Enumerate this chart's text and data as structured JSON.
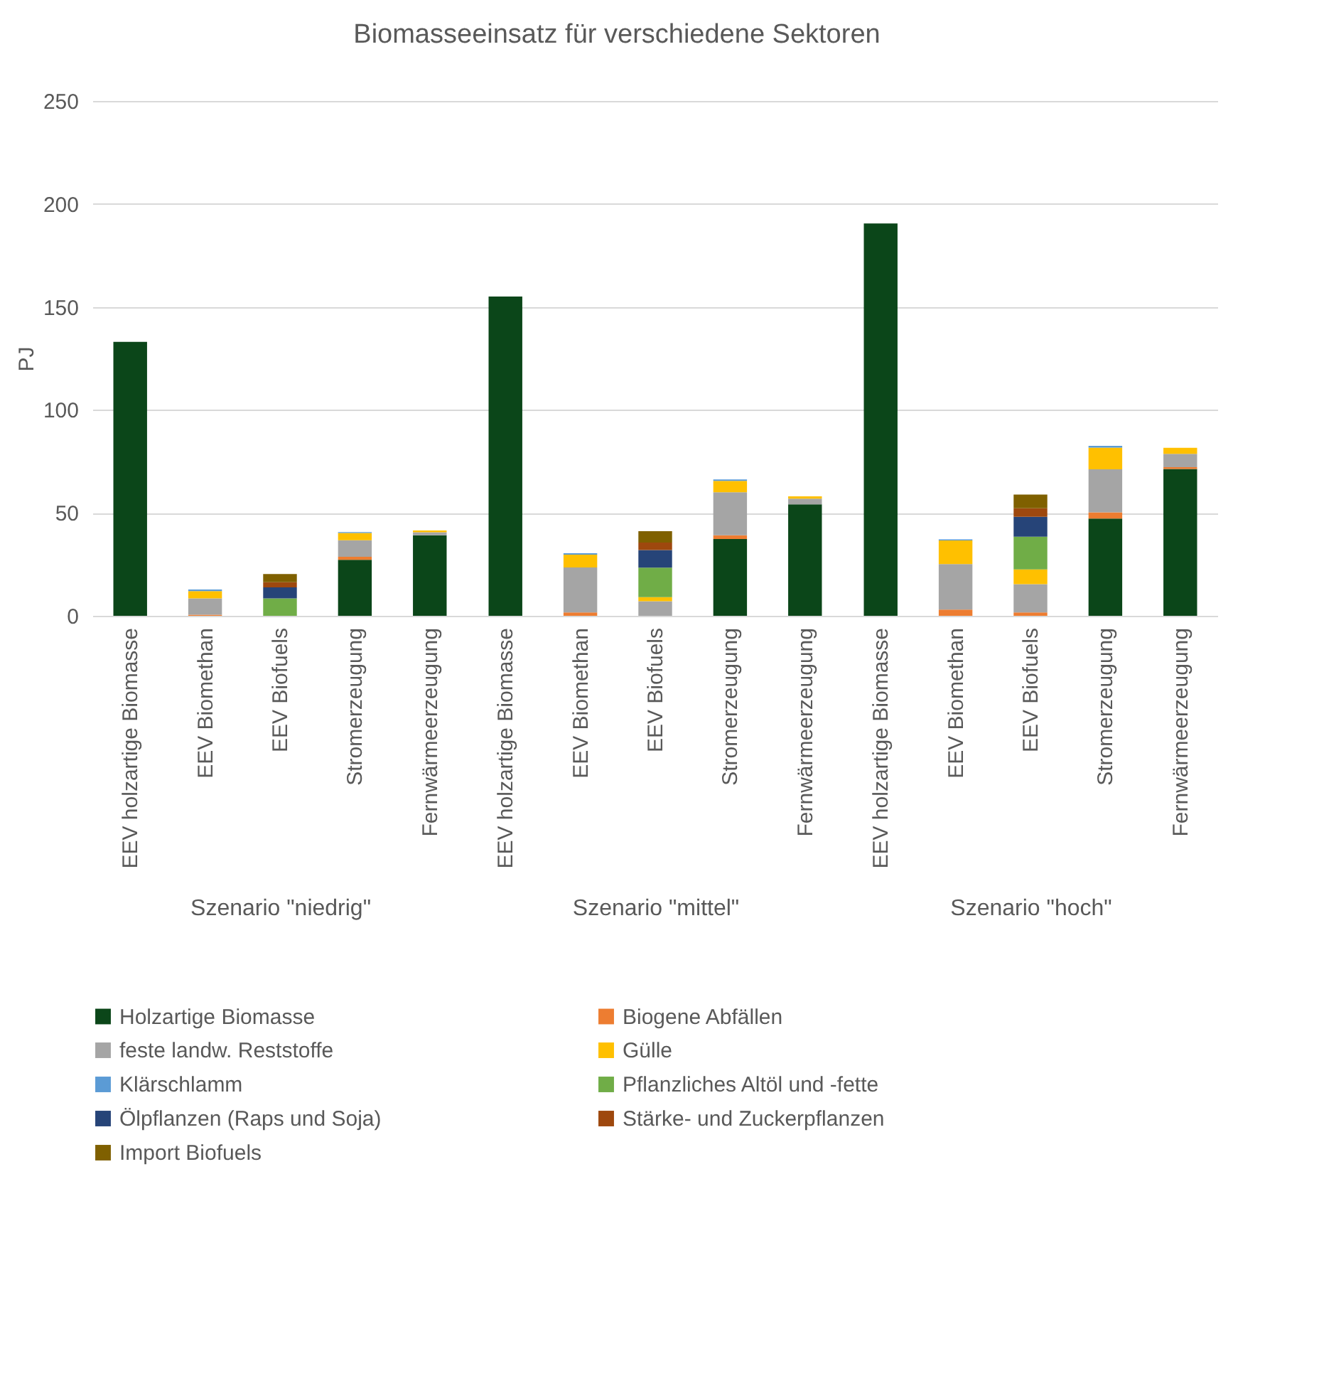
{
  "chart_data": [
    {
      "type": "bar",
      "title": "Biomasseeinsatz für verschiedene Sektoren",
      "ylabel": "PJ",
      "xlabel": "Szenario \"niedrig\"",
      "stacked": true,
      "grid": "y",
      "legend": "bottom",
      "categories": [
        "EEV holzartige Biomasse",
        "EEV Biomethan",
        "EEV Biofuels",
        "Stromerzeugung",
        "Fernwärmeerzeugung"
      ],
      "ylim": [
        0,
        250
      ],
      "yticks": [
        0,
        50,
        100,
        150,
        200,
        250
      ],
      "series": [
        {
          "name": "Holzartige Biomasse",
          "color": "#0b4619",
          "values": [
            133,
            null,
            null,
            27.2,
            39.1
          ]
        },
        {
          "name": "Biogene Abfällen",
          "color": "#ed7d31",
          "values": [
            null,
            0.5,
            null,
            1.5,
            null
          ]
        },
        {
          "name": "feste landw. Reststoffe",
          "color": "#a5a5a5",
          "values": [
            null,
            8,
            null,
            8,
            1.5
          ]
        },
        {
          "name": "Gülle",
          "color": "#ffc000",
          "values": [
            null,
            3.5,
            null,
            3.5,
            0.8
          ]
        },
        {
          "name": "Klärschlamm",
          "color": "#5b9bd5",
          "values": [
            null,
            0.8,
            null,
            0.5,
            null
          ]
        },
        {
          "name": "Pflanzliches Altöl und -fette",
          "color": "#70ad47",
          "values": [
            null,
            null,
            8.5,
            null,
            null
          ]
        },
        {
          "name": "Ölpflanzen (Raps und Soja)",
          "color": "#264478",
          "values": [
            null,
            null,
            5.3,
            null,
            null
          ]
        },
        {
          "name": "Stärke- und Zuckerpflanzen",
          "color": "#9e480e",
          "values": [
            null,
            null,
            2.5,
            null,
            null
          ]
        },
        {
          "name": "Import Biofuels",
          "color": "#7f6000",
          "values": [
            null,
            null,
            4,
            null,
            null
          ]
        }
      ]
    },
    {
      "type": "bar",
      "xlabel": "Szenario \"mittel\"",
      "stacked": true,
      "grid": "y",
      "tick_labels": "x",
      "categories": [
        "EEV holzartige Biomasse",
        "EEV Biomethan",
        "EEV Biofuels",
        "Stromerzeugung",
        "Fernwärmeerzeugung"
      ],
      "ylim": [
        0,
        250
      ],
      "yticks": [
        0,
        50,
        100,
        150,
        200,
        250
      ],
      "series": [
        {
          "color": "#0b4619",
          "values": [
            155,
            null,
            null,
            37.3,
            54.1
          ]
        },
        {
          "color": "#ed7d31",
          "values": [
            null,
            1.6,
            null,
            1.8,
            null
          ]
        },
        {
          "color": "#a5a5a5",
          "values": [
            null,
            21.9,
            7.1,
            20.9,
            2.8
          ]
        },
        {
          "color": "#ffc000",
          "values": [
            null,
            6.2,
            2,
            5.5,
            1.1
          ]
        },
        {
          "color": "#5b9bd5",
          "values": [
            null,
            0.7,
            null,
            0.7,
            null
          ]
        },
        {
          "color": "#70ad47",
          "values": [
            null,
            null,
            14.3,
            null,
            null
          ]
        },
        {
          "color": "#264478",
          "values": [
            null,
            null,
            8.5,
            null,
            null
          ]
        },
        {
          "color": "#9e480e",
          "values": [
            null,
            null,
            3.7,
            null,
            null
          ]
        },
        {
          "color": "#7f6000",
          "values": [
            null,
            null,
            5.5,
            null,
            null
          ]
        }
      ]
    },
    {
      "type": "bar",
      "xlabel": "Szenario \"hoch\"",
      "stacked": true,
      "grid": "y",
      "tick_labels": "x",
      "categories": [
        "EEV holzartige Biomasse",
        "EEV Biomethan",
        "EEV Biofuels",
        "Stromerzeugung",
        "Fernwärmeerzeugung"
      ],
      "ylim": [
        0,
        250
      ],
      "yticks": [
        0,
        50,
        100,
        150,
        200,
        250
      ],
      "series": [
        {
          "color": "#0b4619",
          "values": [
            190.5,
            null,
            null,
            47.2,
            71.3
          ]
        },
        {
          "color": "#ed7d31",
          "values": [
            null,
            3,
            1.6,
            3,
            0.9
          ]
        },
        {
          "color": "#a5a5a5",
          "values": [
            null,
            22.1,
            13.8,
            20.9,
            6.4
          ]
        },
        {
          "color": "#ffc000",
          "values": [
            null,
            11.5,
            7.1,
            10.6,
            3
          ]
        },
        {
          "color": "#5b9bd5",
          "values": [
            null,
            0.5,
            null,
            0.8,
            null
          ]
        },
        {
          "color": "#70ad47",
          "values": [
            null,
            null,
            15.9,
            null,
            null
          ]
        },
        {
          "color": "#264478",
          "values": [
            null,
            null,
            9.7,
            null,
            null
          ]
        },
        {
          "color": "#9e480e",
          "values": [
            null,
            null,
            4.1,
            null,
            null
          ]
        },
        {
          "color": "#7f6000",
          "values": [
            null,
            null,
            6.7,
            null,
            null
          ]
        }
      ]
    }
  ]
}
